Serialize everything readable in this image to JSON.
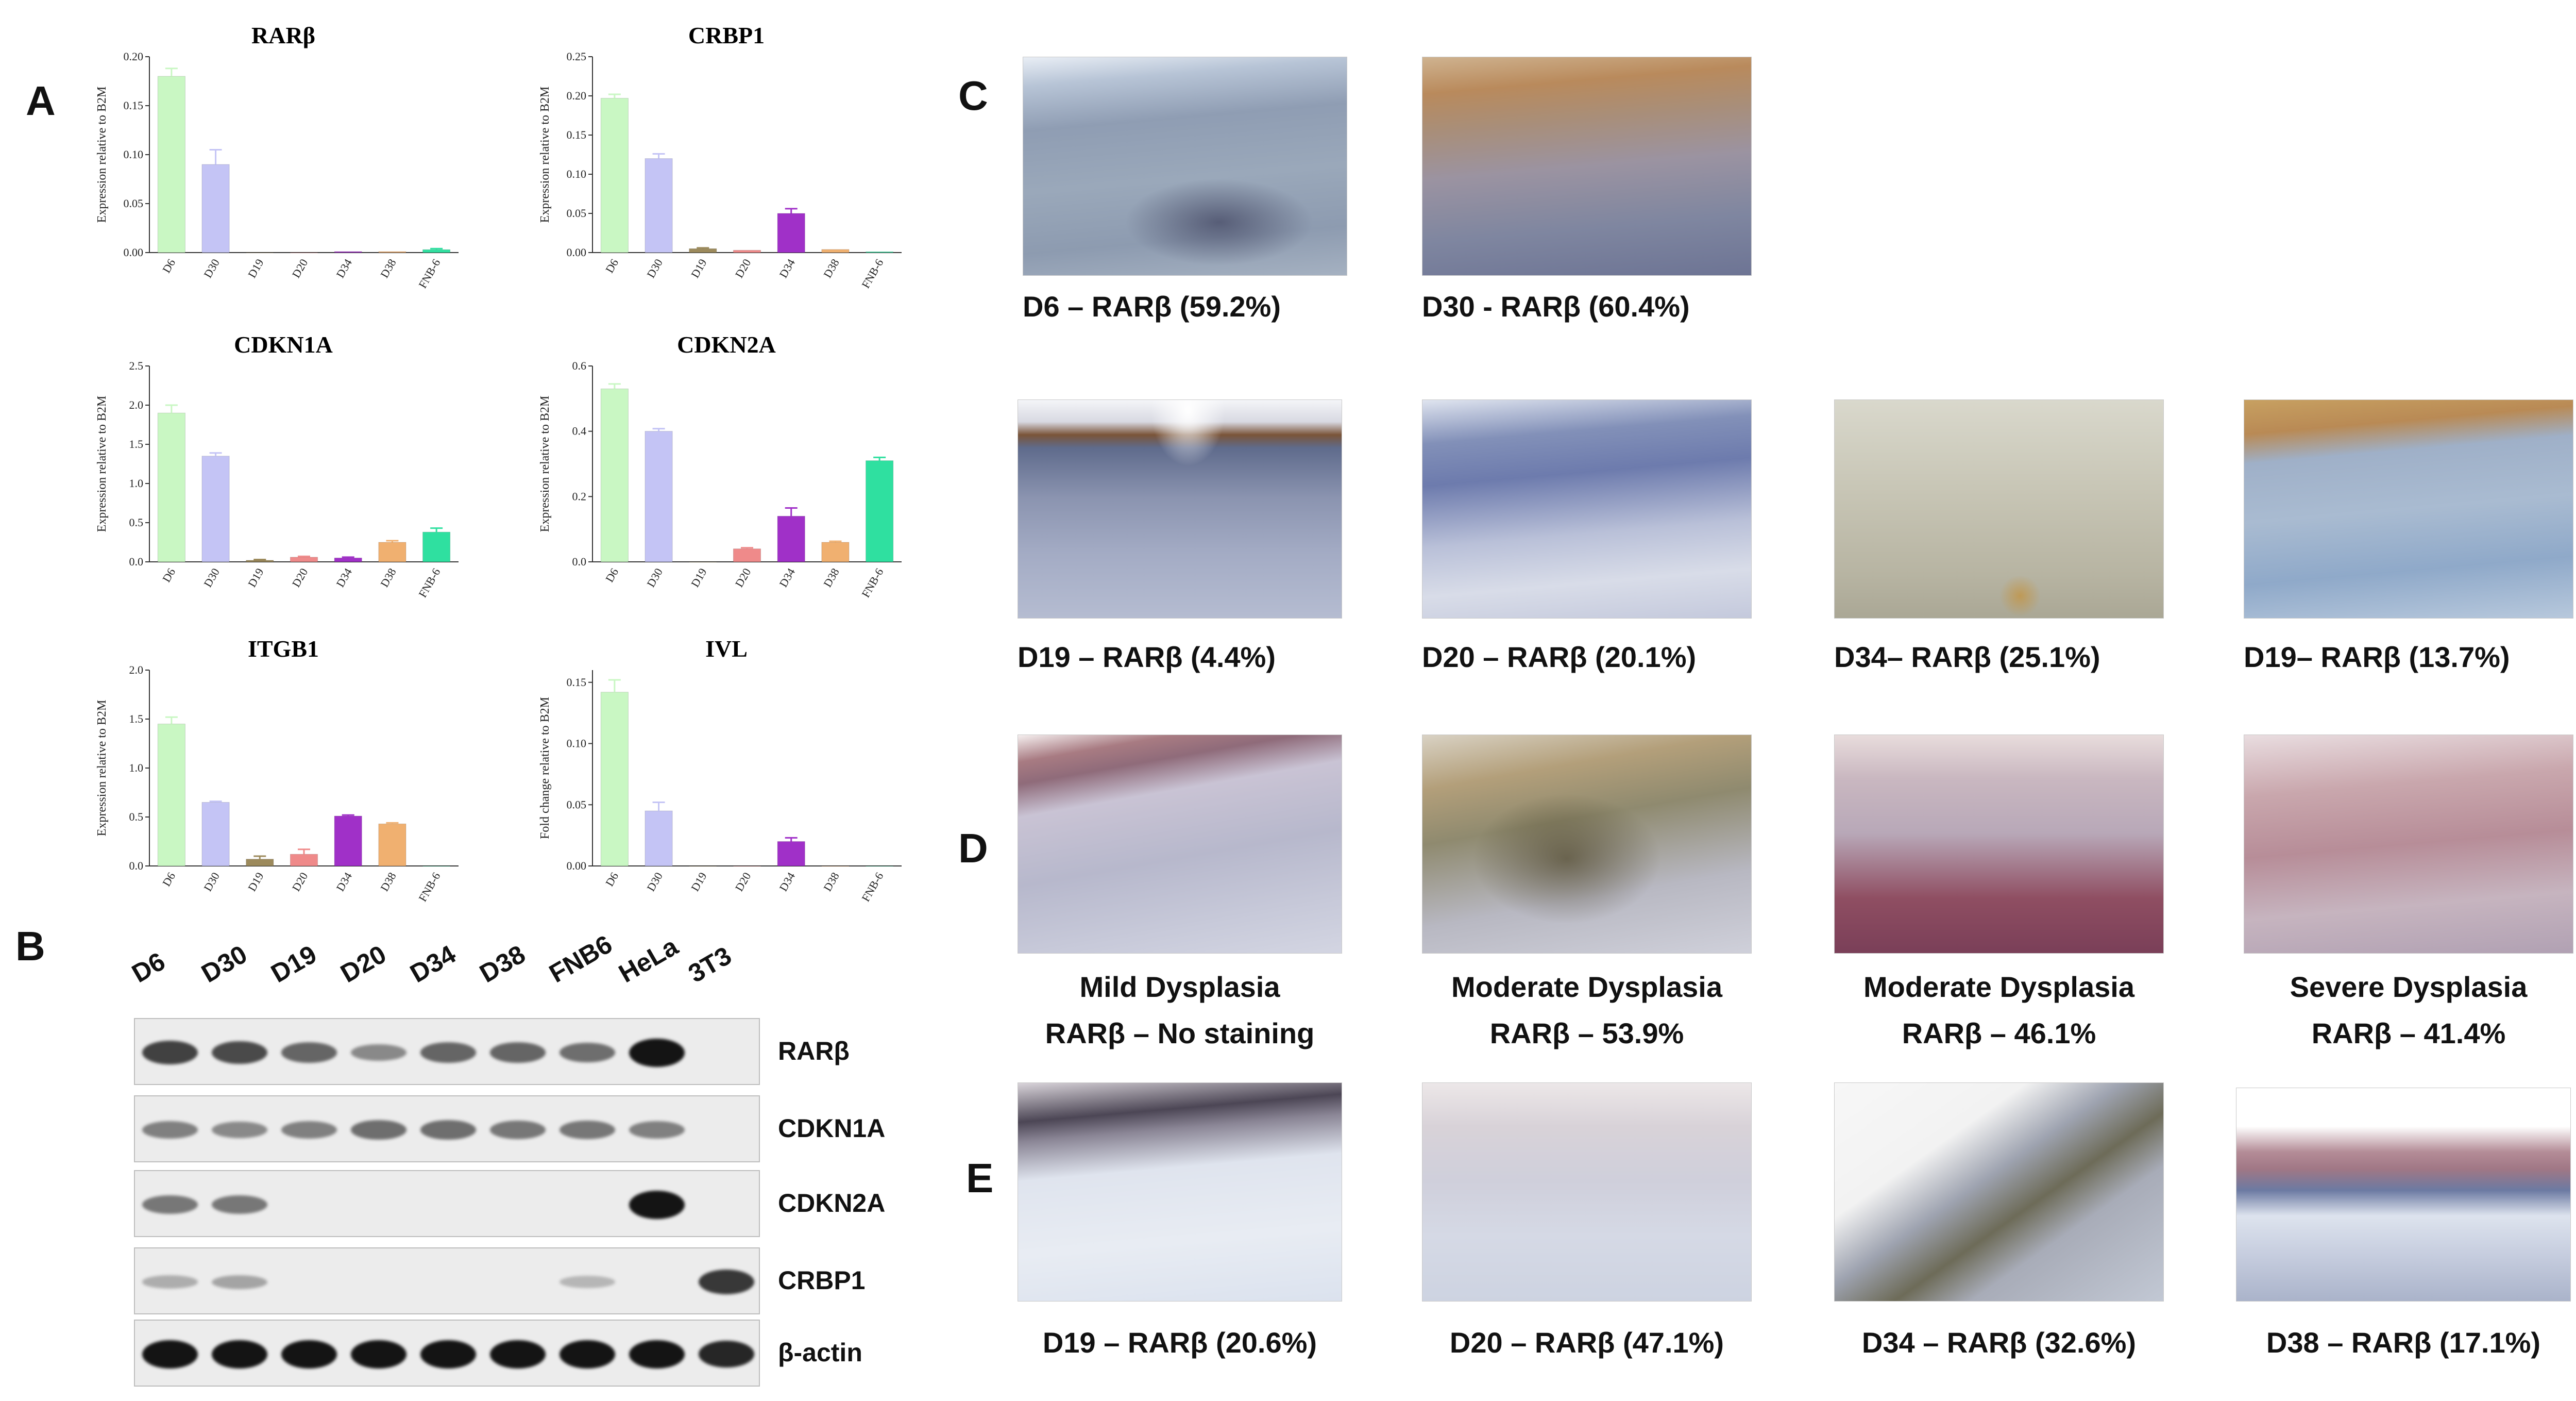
{
  "panel_letters": {
    "A": "A",
    "B": "B",
    "C": "C",
    "D": "D",
    "E": "E"
  },
  "chart_data": [
    {
      "type": "bar",
      "title": "RARβ",
      "ylabel": "Expression relative to B2M",
      "categories": [
        "D6",
        "D30",
        "D19",
        "D20",
        "D34",
        "D38",
        "FNB-6"
      ],
      "values": [
        0.18,
        0.09,
        0.0,
        0.0,
        0.001,
        0.001,
        0.003
      ],
      "errors": [
        0.008,
        0.015,
        0,
        0,
        0,
        0,
        0.001
      ],
      "ylim": [
        0,
        0.2
      ],
      "yticks": [
        "0.00",
        "0.05",
        "0.10",
        "0.15",
        "0.20"
      ],
      "colors": [
        "#c9f7c3",
        "#c4c4f5",
        "#9c8a5c",
        "#ef8a8a",
        "#a030c8",
        "#f0b070",
        "#2fe0a0"
      ]
    },
    {
      "type": "bar",
      "title": "CRBP1",
      "ylabel": "Expression relative to B2M",
      "categories": [
        "D6",
        "D30",
        "D19",
        "D20",
        "D34",
        "D38",
        "FNB-6"
      ],
      "values": [
        0.197,
        0.12,
        0.005,
        0.003,
        0.05,
        0.004,
        0.001
      ],
      "errors": [
        0.005,
        0.006,
        0.001,
        0,
        0.006,
        0,
        0
      ],
      "ylim": [
        0,
        0.25
      ],
      "yticks": [
        "0.00",
        "0.05",
        "0.10",
        "0.15",
        "0.20",
        "0.25"
      ],
      "colors": [
        "#c9f7c3",
        "#c4c4f5",
        "#9c8a5c",
        "#ef8a8a",
        "#a030c8",
        "#f0b070",
        "#2fe0a0"
      ]
    },
    {
      "type": "bar",
      "title": "CDKN1A",
      "ylabel": "Expression relative to B2M",
      "categories": [
        "D6",
        "D30",
        "D19",
        "D20",
        "D34",
        "D38",
        "FNB-6"
      ],
      "values": [
        1.9,
        1.35,
        0.02,
        0.06,
        0.05,
        0.25,
        0.38
      ],
      "errors": [
        0.1,
        0.04,
        0.01,
        0.01,
        0.01,
        0.02,
        0.05
      ],
      "ylim": [
        0,
        2.5
      ],
      "yticks": [
        "0.0",
        "0.5",
        "1.0",
        "1.5",
        "2.0",
        "2.5"
      ],
      "colors": [
        "#c9f7c3",
        "#c4c4f5",
        "#9c8a5c",
        "#ef8a8a",
        "#a030c8",
        "#f0b070",
        "#2fe0a0"
      ]
    },
    {
      "type": "bar",
      "title": "CDKN2A",
      "ylabel": "Expression relative to B2M",
      "categories": [
        "D6",
        "D30",
        "D19",
        "D20",
        "D34",
        "D38",
        "FNB-6"
      ],
      "values": [
        0.53,
        0.4,
        0.0,
        0.04,
        0.14,
        0.06,
        0.31
      ],
      "errors": [
        0.015,
        0.008,
        0,
        0.003,
        0.025,
        0.003,
        0.01
      ],
      "ylim": [
        0,
        0.6
      ],
      "yticks": [
        "0.0",
        "0.2",
        "0.4",
        "0.6"
      ],
      "colors": [
        "#c9f7c3",
        "#c4c4f5",
        "#9c8a5c",
        "#ef8a8a",
        "#a030c8",
        "#f0b070",
        "#2fe0a0"
      ]
    },
    {
      "type": "bar",
      "title": "ITGB1",
      "ylabel": "Expression relative to B2M",
      "categories": [
        "D6",
        "D30",
        "D19",
        "D20",
        "D34",
        "D38",
        "FNB-6"
      ],
      "values": [
        1.45,
        0.65,
        0.07,
        0.12,
        0.51,
        0.43,
        0.0
      ],
      "errors": [
        0.07,
        0.01,
        0.03,
        0.05,
        0.01,
        0.01,
        0
      ],
      "ylim": [
        0,
        2.0
      ],
      "yticks": [
        "0.0",
        "0.5",
        "1.0",
        "1.5",
        "2.0"
      ],
      "colors": [
        "#c9f7c3",
        "#c4c4f5",
        "#9c8a5c",
        "#ef8a8a",
        "#a030c8",
        "#f0b070",
        "#2fe0a0"
      ]
    },
    {
      "type": "bar",
      "title": "IVL",
      "ylabel": "Fold change relative to B2M",
      "categories": [
        "D6",
        "D30",
        "D19",
        "D20",
        "D34",
        "D38",
        "FNB-6"
      ],
      "values": [
        0.142,
        0.045,
        0.0,
        0.0,
        0.02,
        0.0,
        0.0
      ],
      "errors": [
        0.01,
        0.007,
        0,
        0,
        0.003,
        0,
        0
      ],
      "ylim": [
        0,
        0.16
      ],
      "yticks": [
        "0.00",
        "0.05",
        "0.10",
        "0.15"
      ],
      "colors": [
        "#c9f7c3",
        "#c4c4f5",
        "#9c8a5c",
        "#ef8a8a",
        "#a030c8",
        "#f0b070",
        "#2fe0a0"
      ]
    }
  ],
  "western_blot": {
    "lanes": [
      "D6",
      "D30",
      "D19",
      "D20",
      "D34",
      "D38",
      "FNB6",
      "HeLa",
      "3T3"
    ],
    "rows": [
      {
        "label": "RARβ",
        "intensity": [
          0.75,
          0.7,
          0.55,
          0.35,
          0.55,
          0.55,
          0.5,
          1.0,
          0.0
        ]
      },
      {
        "label": "CDKN1A",
        "intensity": [
          0.4,
          0.35,
          0.4,
          0.5,
          0.5,
          0.45,
          0.45,
          0.4,
          0.0
        ]
      },
      {
        "label": "CDKN2A",
        "intensity": [
          0.45,
          0.45,
          0.0,
          0.0,
          0.0,
          0.0,
          0.0,
          1.0,
          0.0
        ]
      },
      {
        "label": "CRBP1",
        "intensity": [
          0.15,
          0.2,
          0.0,
          0.0,
          0.0,
          0.0,
          0.1,
          0.0,
          0.8
        ]
      },
      {
        "label": "β-actin",
        "intensity": [
          1.0,
          1.0,
          1.0,
          1.0,
          1.0,
          1.0,
          1.0,
          1.0,
          0.9
        ]
      }
    ]
  },
  "panel_C": {
    "row1": [
      {
        "caption": "D6 – RARβ (59.2%)"
      },
      {
        "caption": "D30 - RARβ (60.4%)"
      }
    ],
    "row2": [
      {
        "caption": "D19 – RARβ (4.4%)"
      },
      {
        "caption": "D20 – RARβ (20.1%)"
      },
      {
        "caption": "D34– RARβ (25.1%)"
      },
      {
        "caption": "D19– RARβ (13.7%)"
      }
    ]
  },
  "panel_D": [
    {
      "line1": "Mild Dysplasia",
      "line2": "RARβ – No staining"
    },
    {
      "line1": "Moderate Dysplasia",
      "line2": "RARβ – 53.9%"
    },
    {
      "line1": "Moderate Dysplasia",
      "line2": "RARβ – 46.1%"
    },
    {
      "line1": "Severe Dysplasia",
      "line2": "RARβ – 41.4%"
    }
  ],
  "panel_E": [
    {
      "caption": "D19 – RARβ (20.6%)"
    },
    {
      "caption": "D20 – RARβ (47.1%)"
    },
    {
      "caption": "D34 – RARβ (32.6%)"
    },
    {
      "caption": "D38 – RARβ (17.1%)"
    }
  ]
}
